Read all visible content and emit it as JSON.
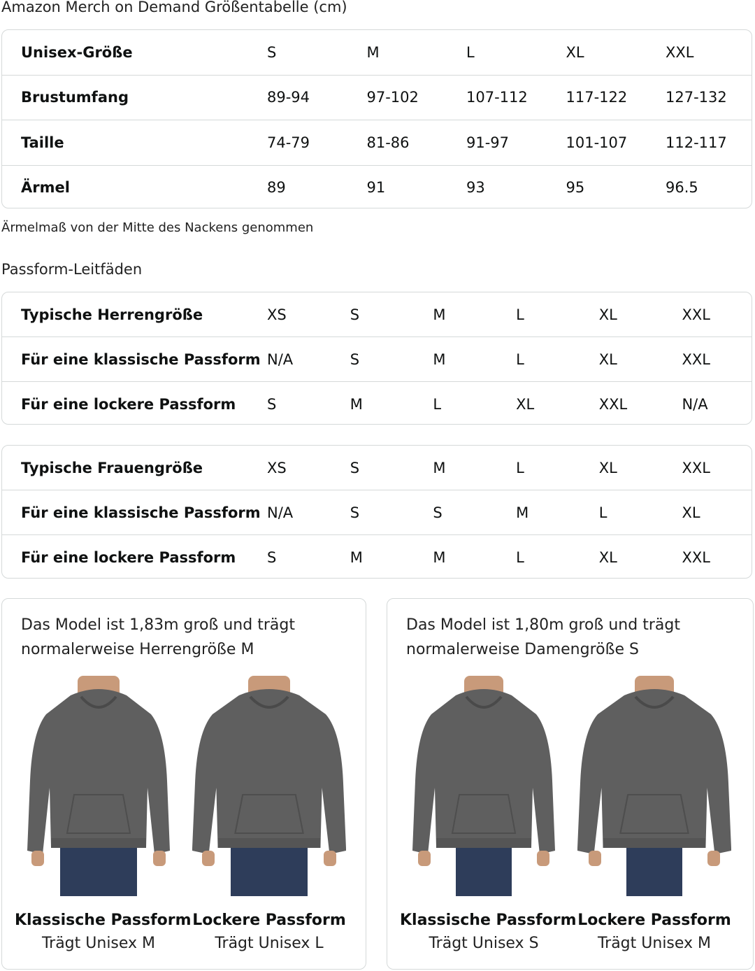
{
  "title": "Amazon Merch on Demand Größentabelle (cm)",
  "size_table": {
    "rows": [
      {
        "label": "Unisex-Größe",
        "values": [
          "S",
          "M",
          "L",
          "XL",
          "XXL"
        ]
      },
      {
        "label": "Brustumfang",
        "values": [
          "89-94",
          "97-102",
          "107-112",
          "117-122",
          "127-132"
        ]
      },
      {
        "label": "Taille",
        "values": [
          "74-79",
          "81-86",
          "91-97",
          "101-107",
          "112-117"
        ]
      },
      {
        "label": "Ärmel",
        "values": [
          "89",
          "91",
          "93",
          "95",
          "96.5"
        ]
      }
    ]
  },
  "note": "Ärmelmaß von der Mitte des Nackens genommen",
  "fit_heading": "Passform-Leitfäden",
  "men_table": {
    "rows": [
      {
        "label": "Typische Herrengröße",
        "values": [
          "XS",
          "S",
          "M",
          "L",
          "XL",
          "XXL"
        ]
      },
      {
        "label": "Für eine klassische Passform",
        "values": [
          "N/A",
          "S",
          "M",
          "L",
          "XL",
          "XXL"
        ]
      },
      {
        "label": "Für eine lockere Passform",
        "values": [
          "S",
          "M",
          "L",
          "XL",
          "XXL",
          "N/A"
        ]
      }
    ]
  },
  "women_table": {
    "rows": [
      {
        "label": "Typische Frauengröße",
        "values": [
          "XS",
          "S",
          "M",
          "L",
          "XL",
          "XXL"
        ]
      },
      {
        "label": "Für eine klassische Passform",
        "values": [
          "N/A",
          "S",
          "S",
          "M",
          "L",
          "XL"
        ]
      },
      {
        "label": "Für eine lockere Passform",
        "values": [
          "S",
          "M",
          "M",
          "L",
          "XL",
          "XXL"
        ]
      }
    ]
  },
  "cards": [
    {
      "desc": "Das Model ist 1,83m groß und trägt normalerweise Herrengröße M",
      "figures": [
        {
          "title": "Klassische Passform",
          "sub": "Trägt Unisex M"
        },
        {
          "title": "Lockere Passform",
          "sub": "Trägt Unisex L"
        }
      ]
    },
    {
      "desc": "Das Model ist 1,80m groß und trägt normalerweise Damengröße S",
      "figures": [
        {
          "title": "Klassische Passform",
          "sub": "Trägt Unisex S"
        },
        {
          "title": "Lockere Passform",
          "sub": "Trägt Unisex M"
        }
      ]
    }
  ],
  "colors": {
    "hoodie": "#5f5f5f",
    "border": "#d5d9d9",
    "jeans": "#2e3d5a"
  }
}
